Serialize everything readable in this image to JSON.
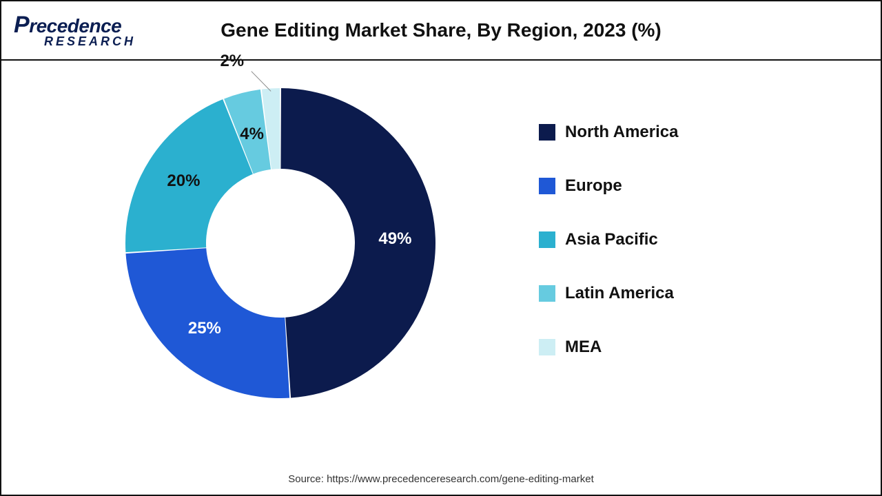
{
  "chart": {
    "type": "donut",
    "title": "Gene Editing Market Share, By Region, 2023 (%)",
    "logo_main": "recedence",
    "logo_p": "P",
    "logo_sub": "RESEARCH",
    "source_text": "Source: https://www.precedenceresearch.com/gene-editing-market",
    "background_color": "#ffffff",
    "border_color": "#111111",
    "title_fontsize": 28,
    "label_fontsize": 24,
    "legend_fontsize": 24,
    "source_fontsize": 15,
    "donut_outer_radius": 225,
    "donut_inner_radius": 108,
    "slice_gap_deg": 0.5,
    "segments": [
      {
        "label": "North America",
        "value": 49,
        "color": "#0c1b4d",
        "data_label": "49%",
        "label_color": "#ffffff"
      },
      {
        "label": "Europe",
        "value": 25,
        "color": "#1f58d6",
        "data_label": "25%",
        "label_color": "#ffffff"
      },
      {
        "label": "Asia Pacific",
        "value": 20,
        "color": "#2bb0cf",
        "data_label": "20%",
        "label_color": "#111111"
      },
      {
        "label": "Latin America",
        "value": 4,
        "color": "#66cbe0",
        "data_label": "4%",
        "label_color": "#111111"
      },
      {
        "label": "MEA",
        "value": 2,
        "color": "#cdeef4",
        "data_label": "2%",
        "label_color": "#111111",
        "callout": true
      }
    ]
  }
}
